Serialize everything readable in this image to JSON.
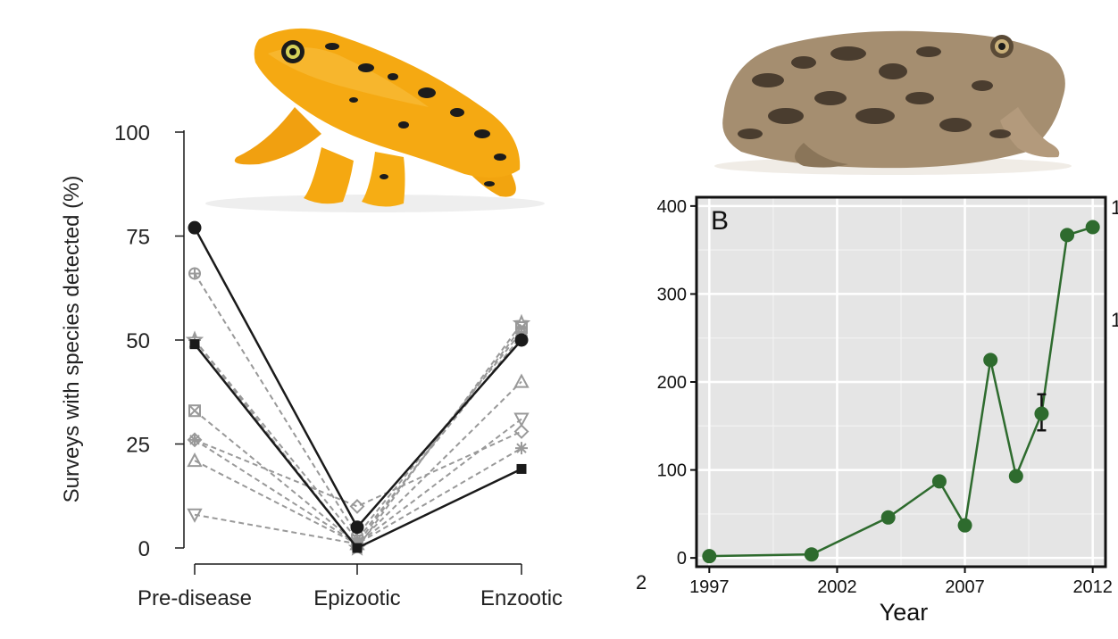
{
  "chart_data": [
    {
      "type": "line",
      "ylabel": "Surveys with species detected (%)",
      "categories": [
        "Pre-disease",
        "Epizootic",
        "Enzootic"
      ],
      "yticks": [
        0,
        25,
        50,
        75,
        100
      ],
      "ylim": [
        0,
        100
      ],
      "series": [
        {
          "marker": "circle",
          "style": "solid",
          "color": "#1a1a1a",
          "values": [
            77,
            5,
            50
          ]
        },
        {
          "marker": "square",
          "style": "solid",
          "color": "#1a1a1a",
          "values": [
            49,
            0,
            19
          ]
        },
        {
          "marker": "plus",
          "style": "dashed",
          "color": "#999999",
          "values": [
            50,
            2,
            51
          ]
        },
        {
          "marker": "sun",
          "style": "dashed",
          "color": "#999999",
          "values": [
            66,
            3,
            52
          ]
        },
        {
          "marker": "boxx",
          "style": "dashed",
          "color": "#999999",
          "values": [
            33,
            1,
            53
          ]
        },
        {
          "marker": "asterisk",
          "style": "dashed",
          "color": "#999999",
          "values": [
            26,
            1,
            24
          ]
        },
        {
          "marker": "triangle",
          "style": "dashed",
          "color": "#999999",
          "values": [
            21,
            1,
            40
          ]
        },
        {
          "marker": "diamond",
          "style": "dashed",
          "color": "#999999",
          "values": [
            26,
            10,
            28
          ]
        },
        {
          "marker": "tridown",
          "style": "dashed",
          "color": "#999999",
          "values": [
            8,
            1,
            31
          ]
        },
        {
          "marker": "star",
          "style": "dashed",
          "color": "#999999",
          "values": [
            50,
            0,
            54
          ]
        }
      ]
    },
    {
      "type": "line",
      "panel_label": "B",
      "xlabel": "Year",
      "xticks": [
        1997,
        2002,
        2007,
        2012
      ],
      "yticks": [
        0,
        100,
        200,
        300,
        400
      ],
      "xlim": [
        1996.5,
        2012.5
      ],
      "ylim": [
        -10,
        410
      ],
      "grid": true,
      "color": "#2e6b2e",
      "x": [
        1997,
        2001,
        2004,
        2006,
        2007,
        2008,
        2009,
        2010,
        2011,
        2012
      ],
      "y": [
        2,
        4,
        46,
        87,
        37,
        225,
        93,
        164,
        367,
        376
      ],
      "error_bar": {
        "x": 2010,
        "low": 145,
        "high": 186
      }
    }
  ],
  "figure": {
    "images": [
      {
        "name": "yellow-frog-photo",
        "body_color": "#f3a712",
        "spot_color": "#1c1c1c"
      },
      {
        "name": "brown-frog-photo",
        "body_color": "#a08a6e",
        "spot_color": "#3a2f25"
      }
    ],
    "stray_text": {
      "left_char": "2",
      "right_char_1": "1",
      "right_char_2": "1"
    }
  }
}
